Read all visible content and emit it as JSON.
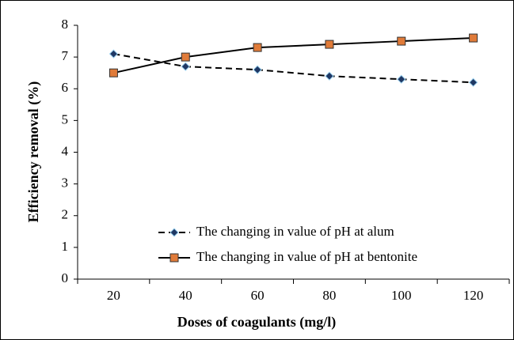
{
  "chart_data": {
    "type": "line",
    "x_label": "Doses of coagulants (mg/l)",
    "y_label": "Efficiency removal (%)",
    "categories": [
      "20",
      "40",
      "60",
      "80",
      "100",
      "120"
    ],
    "series": [
      {
        "name": "The changing in value of pH at alum",
        "color": "#1f3864",
        "marker": "diamond",
        "dash": true,
        "values": [
          7.1,
          6.7,
          6.6,
          6.4,
          6.3,
          6.2
        ]
      },
      {
        "name": "The changing in value of pH at bentonite",
        "color": "#e07b39",
        "marker": "square",
        "dash": false,
        "values": [
          6.5,
          7.0,
          7.3,
          7.4,
          7.5,
          7.6
        ]
      }
    ],
    "ylim": [
      0,
      8
    ],
    "yticks": [
      0,
      1,
      2,
      3,
      4,
      5,
      6,
      7,
      8
    ],
    "grid": false,
    "legend": "lower right"
  }
}
